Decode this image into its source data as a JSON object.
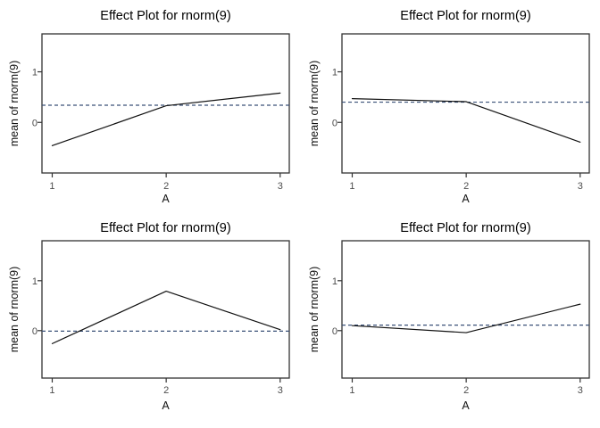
{
  "figure": {
    "background": "#ffffff",
    "colors": {
      "effect_line": "#111111",
      "mean_line": "#3A5178",
      "panel_border": "#333333",
      "tick_mark": "#333333",
      "tick_label": "#4d4d4d",
      "axis_title": "#111111",
      "plot_title": "#000000"
    }
  },
  "chart_data": [
    {
      "type": "line",
      "title": "Effect Plot for rnorm(9)",
      "xlabel": "A",
      "ylabel": "mean of rnorm(9)",
      "x": [
        1,
        2,
        3
      ],
      "xtick_labels": [
        "1",
        "2",
        "3"
      ],
      "values": [
        -0.46,
        0.33,
        0.58
      ],
      "mean_line": 0.34,
      "line_style": "solid",
      "mean_line_style": "dashed",
      "yticks": [
        0,
        1
      ],
      "ytick_labels": [
        "0",
        "1"
      ],
      "xlim": [
        0.91,
        3.08
      ],
      "ylim": [
        -1.0,
        1.75
      ],
      "grid": false,
      "legend": null
    },
    {
      "type": "line",
      "title": "Effect Plot for rnorm(9)",
      "xlabel": "A",
      "ylabel": "mean of rnorm(9)",
      "x": [
        1,
        2,
        3
      ],
      "xtick_labels": [
        "1",
        "2",
        "3"
      ],
      "values": [
        0.47,
        0.41,
        -0.39
      ],
      "mean_line": 0.4,
      "line_style": "solid",
      "mean_line_style": "dashed",
      "yticks": [
        0,
        1
      ],
      "ytick_labels": [
        "0",
        "1"
      ],
      "xlim": [
        0.91,
        3.08
      ],
      "ylim": [
        -1.0,
        1.75
      ],
      "grid": false,
      "legend": null
    },
    {
      "type": "line",
      "title": "Effect Plot for rnorm(9)",
      "xlabel": "A",
      "ylabel": "mean of rnorm(9)",
      "x": [
        1,
        2,
        3
      ],
      "xtick_labels": [
        "1",
        "2",
        "3"
      ],
      "values": [
        -0.26,
        0.79,
        0.02
      ],
      "mean_line": -0.01,
      "line_style": "solid",
      "mean_line_style": "dashed",
      "yticks": [
        0,
        1
      ],
      "ytick_labels": [
        "0",
        "1"
      ],
      "xlim": [
        0.91,
        3.08
      ],
      "ylim": [
        -0.95,
        1.8
      ],
      "grid": false,
      "legend": null
    },
    {
      "type": "line",
      "title": "Effect Plot for rnorm(9)",
      "xlabel": "A",
      "ylabel": "mean of rnorm(9)",
      "x": [
        1,
        2,
        3
      ],
      "xtick_labels": [
        "1",
        "2",
        "3"
      ],
      "values": [
        0.1,
        -0.04,
        0.53
      ],
      "mean_line": 0.11,
      "line_style": "solid",
      "mean_line_style": "dashed",
      "yticks": [
        0,
        1
      ],
      "ytick_labels": [
        "0",
        "1"
      ],
      "xlim": [
        0.91,
        3.08
      ],
      "ylim": [
        -0.95,
        1.8
      ],
      "grid": false,
      "legend": null
    }
  ]
}
